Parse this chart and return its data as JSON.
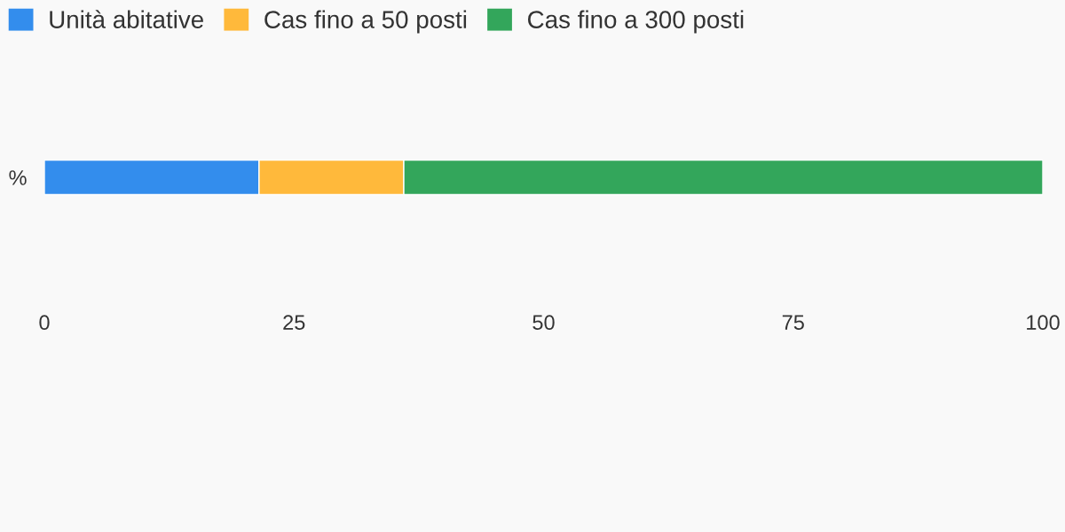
{
  "chart_data": {
    "type": "bar",
    "orientation": "horizontal",
    "stacked": true,
    "categories": [
      "%"
    ],
    "series": [
      {
        "name": "Unità abitative",
        "color": "#338ded",
        "values": [
          21.5
        ]
      },
      {
        "name": "Cas fino a 50 posti",
        "color": "#ffb93b",
        "values": [
          14.5
        ]
      },
      {
        "name": "Cas fino a 300 posti",
        "color": "#33a65b",
        "values": [
          64
        ]
      }
    ],
    "xlim": [
      0,
      100
    ],
    "xticks": [
      0,
      25,
      50,
      75,
      100
    ],
    "grid": false,
    "legend": "top left"
  }
}
